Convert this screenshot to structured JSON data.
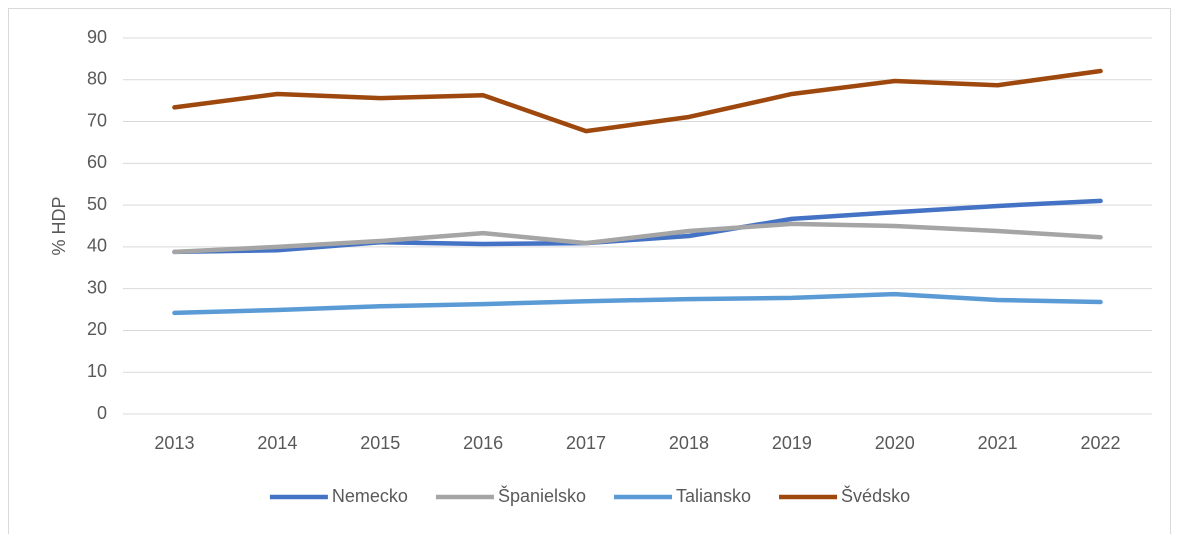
{
  "chart_data": {
    "type": "line",
    "y_label": "% HDP",
    "categories": [
      "2013",
      "2014",
      "2015",
      "2016",
      "2017",
      "2018",
      "2019",
      "2020",
      "2021",
      "2022"
    ],
    "series": [
      {
        "name": "Nemecko",
        "color": "#4472c4",
        "values": [
          38.8,
          39.2,
          41.1,
          40.7,
          40.9,
          42.6,
          46.7,
          48.3,
          49.8,
          51.0
        ]
      },
      {
        "name": "Španielsko",
        "color": "#a5a5a5",
        "values": [
          38.8,
          40.0,
          41.4,
          43.3,
          40.9,
          43.8,
          45.5,
          45.0,
          43.8,
          42.3
        ]
      },
      {
        "name": "Taliansko",
        "color": "#5b9bd5",
        "values": [
          24.2,
          24.9,
          25.8,
          26.3,
          27.0,
          27.5,
          27.8,
          28.7,
          27.3,
          26.8
        ]
      },
      {
        "name": "Švédsko",
        "color": "#9e480e",
        "values": [
          73.4,
          76.6,
          75.6,
          76.3,
          67.7,
          71.1,
          76.6,
          79.7,
          78.7,
          82.1
        ]
      }
    ],
    "ylim": [
      0,
      90
    ],
    "yticks": [
      0,
      10,
      20,
      30,
      40,
      50,
      60,
      70,
      80,
      90
    ],
    "grid": true,
    "legend": "bottom"
  }
}
